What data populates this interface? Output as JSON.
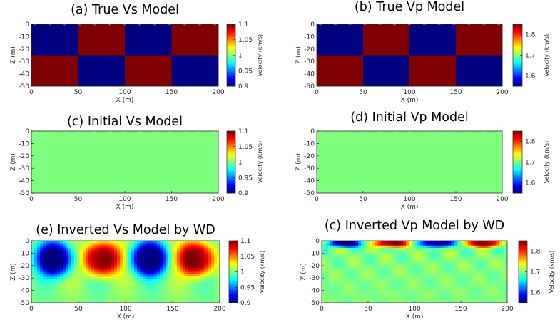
{
  "figure": {
    "colormap": "jet",
    "colormap_name": "jet"
  },
  "chart_data": [
    {
      "panel": "a",
      "type": "heatmap",
      "title": "(a) True Vs Model",
      "xlabel": "X (m)",
      "ylabel": "Z (m)",
      "xlim": [
        0,
        200
      ],
      "ylim": [
        -50,
        0
      ],
      "xticks": [
        "0",
        "50",
        "100",
        "150",
        "200"
      ],
      "yticks": [
        "0",
        "-10",
        "-20",
        "-30",
        "-40",
        "-50"
      ],
      "colorbar": {
        "label": "Velocity (km/s)",
        "range": [
          0.9,
          1.1
        ],
        "ticks": [
          "1.1",
          "1.05",
          "1",
          "0.95",
          "0.9"
        ]
      },
      "model": {
        "kind": "checker",
        "x_edges": [
          0,
          50,
          100,
          150,
          200
        ],
        "z_edges": [
          0,
          -25,
          -50
        ],
        "values": [
          [
            0.9,
            1.1,
            0.9,
            1.1
          ],
          [
            1.1,
            0.9,
            1.1,
            0.9
          ]
        ]
      },
      "receivers": {
        "marker": "*",
        "count": 13
      }
    },
    {
      "panel": "b",
      "type": "heatmap",
      "title": "(b) True Vp Model",
      "xlabel": "X (m)",
      "ylabel": "Z (m)",
      "xlim": [
        0,
        200
      ],
      "ylim": [
        -50,
        0
      ],
      "xticks": [
        "0",
        "50",
        "100",
        "150",
        "200"
      ],
      "yticks": [
        "0",
        "-10",
        "-20",
        "-30",
        "-40",
        "-50"
      ],
      "colorbar": {
        "label": "Velocity (km/s)",
        "range": [
          1.55,
          1.85
        ],
        "ticks": [
          "1.8",
          "1.7",
          "1.6"
        ]
      },
      "model": {
        "kind": "checker",
        "x_edges": [
          0,
          50,
          100,
          150,
          200
        ],
        "z_edges": [
          0,
          -25,
          -50
        ],
        "values": [
          [
            1.55,
            1.85,
            1.55,
            1.85
          ],
          [
            1.85,
            1.55,
            1.85,
            1.55
          ]
        ]
      },
      "receivers": {
        "marker": "*",
        "count": 13
      }
    },
    {
      "panel": "c",
      "type": "heatmap",
      "title": "(c) Initial Vs Model",
      "xlabel": "X (m)",
      "ylabel": "Z (m)",
      "xlim": [
        0,
        200
      ],
      "ylim": [
        -50,
        0
      ],
      "xticks": [
        "0",
        "50",
        "100",
        "150",
        "200"
      ],
      "yticks": [
        "0",
        "-10",
        "-20",
        "-30",
        "-40",
        "-50"
      ],
      "colorbar": {
        "label": "Velocity (km/s)",
        "range": [
          0.9,
          1.1
        ],
        "ticks": [
          "1.1",
          "1.05",
          "1",
          "0.95",
          "0.9"
        ]
      },
      "model": {
        "kind": "uniform",
        "value": 1.0
      },
      "receivers": {
        "marker": "*",
        "count": 13
      }
    },
    {
      "panel": "d",
      "type": "heatmap",
      "title": "(d) Initial Vp Model",
      "xlabel": "X (m)",
      "ylabel": "Z (m)",
      "xlim": [
        0,
        200
      ],
      "ylim": [
        -50,
        0
      ],
      "xticks": [
        "0",
        "50",
        "100",
        "150",
        "200"
      ],
      "yticks": [
        "0",
        "-10",
        "-20",
        "-30",
        "-40",
        "-50"
      ],
      "colorbar": {
        "label": "Velocity (km/s)",
        "range": [
          1.55,
          1.85
        ],
        "ticks": [
          "1.8",
          "1.7",
          "1.6"
        ]
      },
      "model": {
        "kind": "uniform",
        "value": 1.7
      },
      "receivers": {
        "marker": "*",
        "count": 13
      }
    },
    {
      "panel": "e",
      "type": "heatmap",
      "title": "(e) Inverted Vs Model by WD",
      "xlabel": "X (m)",
      "ylabel": "Z (m)",
      "xlim": [
        0,
        200
      ],
      "ylim": [
        -50,
        0
      ],
      "xticks": [
        "0",
        "50",
        "100",
        "150",
        "200"
      ],
      "yticks": [
        "0",
        "-10",
        "-20",
        "-30",
        "-40",
        "-50"
      ],
      "colorbar": {
        "label": "Velocity (km/s)",
        "range": [
          0.9,
          1.1
        ],
        "ticks": [
          "1.1",
          "1.05",
          "1",
          "0.95",
          "0.9"
        ]
      },
      "model": {
        "kind": "inverted-vs",
        "background": 1.0,
        "anomalies": [
          {
            "x": 25,
            "z": -14,
            "value": 0.9
          },
          {
            "x": 75,
            "z": -14,
            "value": 1.1
          },
          {
            "x": 125,
            "z": -14,
            "value": 0.9
          },
          {
            "x": 175,
            "z": -14,
            "value": 1.1
          }
        ]
      },
      "receivers": {
        "marker": "*",
        "count": 13
      }
    },
    {
      "panel": "f",
      "type": "heatmap",
      "title": "(c) Inverted Vp Model by WD",
      "xlabel": "X (m)",
      "ylabel": "Z (m)",
      "xlim": [
        0,
        200
      ],
      "ylim": [
        -50,
        0
      ],
      "xticks": [
        "0",
        "50",
        "100",
        "150",
        "200"
      ],
      "yticks": [
        "0",
        "-10",
        "-20",
        "-30",
        "-40",
        "-50"
      ],
      "colorbar": {
        "label": "Velocity (km/s)",
        "range": [
          1.55,
          1.85
        ],
        "ticks": [
          "1.8",
          "1.7",
          "1.6"
        ]
      },
      "model": {
        "kind": "inverted-vp",
        "background": 1.7,
        "anomalies": [
          {
            "x": 25,
            "z": -2,
            "value": 1.55
          },
          {
            "x": 75,
            "z": -2,
            "value": 1.85
          },
          {
            "x": 125,
            "z": -2,
            "value": 1.55
          },
          {
            "x": 175,
            "z": -2,
            "value": 1.85
          }
        ]
      },
      "receivers": {
        "marker": "*",
        "count": 13
      }
    }
  ]
}
